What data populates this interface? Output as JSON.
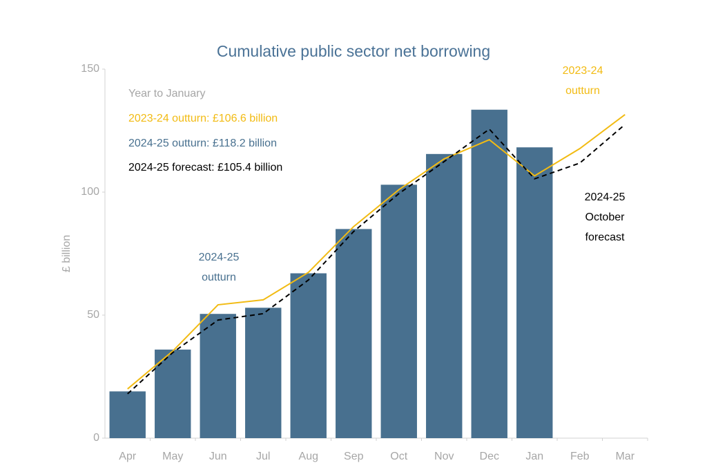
{
  "chart_data": {
    "type": "bar",
    "title": "Cumulative public sector net borrowing",
    "y_label": "£ billion",
    "categories": [
      "Apr",
      "May",
      "Jun",
      "Jul",
      "Aug",
      "Sep",
      "Oct",
      "Nov",
      "Dec",
      "Jan",
      "Feb",
      "Mar"
    ],
    "series": [
      {
        "type": "bar",
        "color": "#48708f",
        "values": [
          19,
          36,
          50.5,
          53,
          67,
          85,
          103,
          115.5,
          133.5,
          118.2,
          null,
          null
        ]
      },
      {
        "type": "line",
        "color": "#f2bb13",
        "dashed": false,
        "values": [
          20,
          35.4,
          54.2,
          56.2,
          67.4,
          86,
          101,
          113.5,
          121.3,
          106.6,
          117.7,
          131.5
        ]
      },
      {
        "type": "line",
        "color": "#000000",
        "dashed": true,
        "values": [
          18,
          34.8,
          48,
          50.6,
          64.3,
          84,
          99.4,
          112.4,
          125.6,
          105.4,
          111.8,
          127.5
        ]
      }
    ],
    "ylim": [
      0,
      150
    ],
    "yticks": [
      0,
      50,
      100,
      150
    ],
    "grid": false,
    "summary": [
      {
        "text": "Year to January",
        "color": "#a6a6a6"
      },
      {
        "text": "2023-24 outturn: £106.6 billion",
        "color": "#f2bb13"
      },
      {
        "text": "2024-25 outturn: £118.2 billion",
        "color": "#48708f"
      },
      {
        "text": "2024-25 forecast: £105.4 billion",
        "color": "#000000"
      }
    ],
    "annotations": [
      {
        "lines": [
          "2023-24",
          "outturn"
        ],
        "color": "#f2bb13"
      },
      {
        "lines": [
          "2024-25",
          "October",
          "forecast"
        ],
        "color": "#000000"
      },
      {
        "lines": [
          "2024-25",
          "outturn"
        ],
        "color": "#48708f"
      }
    ]
  }
}
